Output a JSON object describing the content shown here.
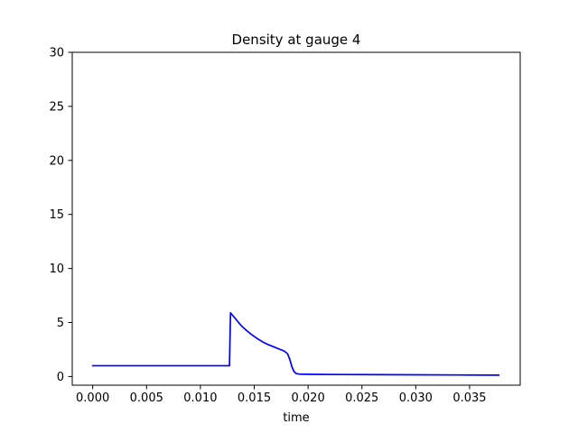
{
  "chart_data": {
    "type": "line",
    "title": "Density at gauge 4",
    "xlabel": "time",
    "ylabel": "",
    "xlim": [
      -0.0019,
      0.0397
    ],
    "ylim": [
      -0.8,
      30
    ],
    "xticks": [
      0.0,
      0.005,
      0.01,
      0.015,
      0.02,
      0.025,
      0.03,
      0.035
    ],
    "xtick_labels": [
      "0.000",
      "0.005",
      "0.010",
      "0.015",
      "0.020",
      "0.025",
      "0.030",
      "0.035"
    ],
    "yticks": [
      0,
      5,
      10,
      15,
      20,
      25,
      30
    ],
    "ytick_labels": [
      "0",
      "5",
      "10",
      "15",
      "20",
      "25",
      "30"
    ],
    "grid": false,
    "series": [
      {
        "color": "#0000ff",
        "x": [
          0.0,
          0.0127,
          0.01275,
          0.0128,
          0.0133,
          0.0138,
          0.0143,
          0.0148,
          0.0153,
          0.0158,
          0.0163,
          0.0168,
          0.0173,
          0.0178,
          0.0181,
          0.0183,
          0.0185,
          0.0187,
          0.0189,
          0.0191,
          0.0193,
          0.0197,
          0.0205,
          0.025,
          0.03,
          0.035,
          0.0377
        ],
        "y": [
          1.0,
          1.0,
          3.5,
          5.9,
          5.3,
          4.7,
          4.25,
          3.85,
          3.5,
          3.2,
          2.95,
          2.75,
          2.55,
          2.35,
          2.1,
          1.6,
          0.9,
          0.45,
          0.28,
          0.24,
          0.22,
          0.21,
          0.2,
          0.18,
          0.16,
          0.14,
          0.13
        ]
      }
    ]
  }
}
